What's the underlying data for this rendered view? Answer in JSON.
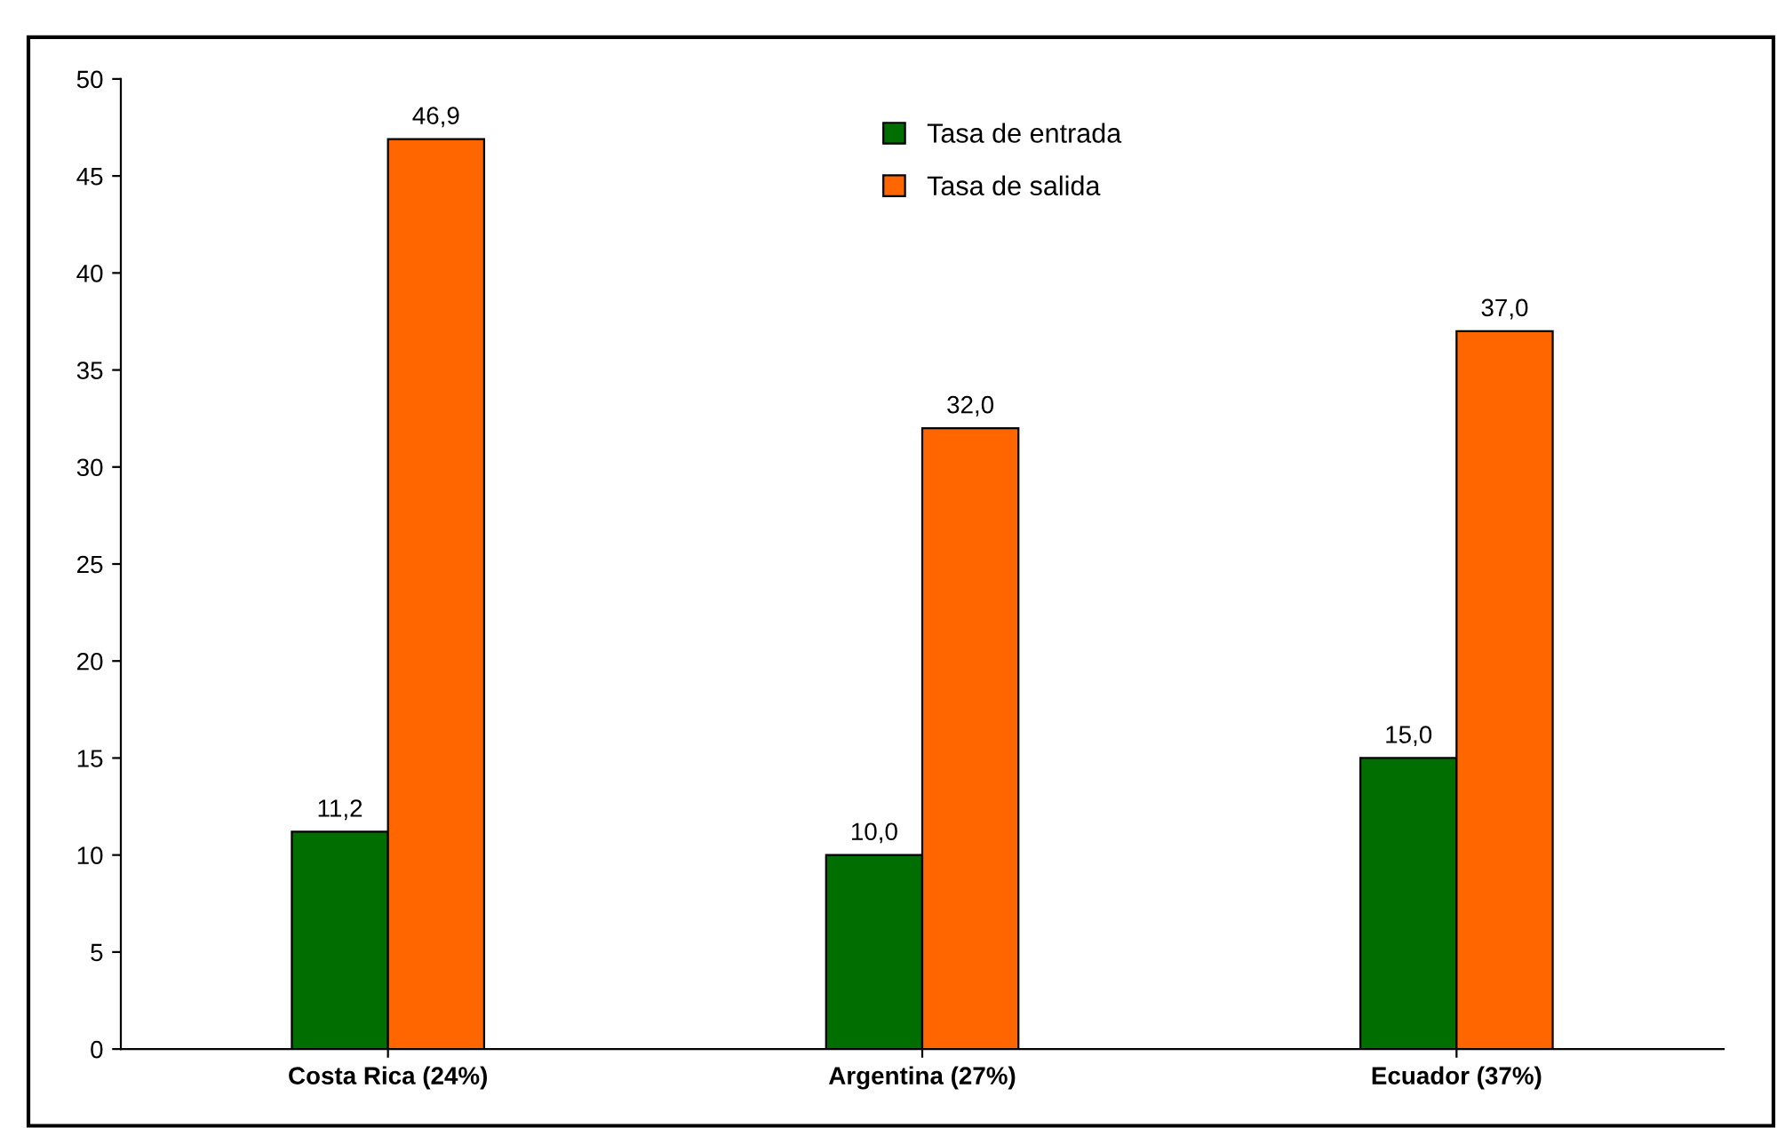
{
  "chart_data": {
    "type": "bar",
    "categories": [
      "Costa Rica (24%)",
      "Argentina (27%)",
      "Ecuador (37%)"
    ],
    "series": [
      {
        "name": "Tasa de entrada",
        "color": "#006e00",
        "values": [
          11.2,
          10.0,
          15.0
        ],
        "value_labels": [
          "11,2",
          "10,0",
          "15,0"
        ]
      },
      {
        "name": "Tasa de salida",
        "color": "#ff6600",
        "values": [
          46.9,
          32.0,
          37.0
        ],
        "value_labels": [
          "46,9",
          "32,0",
          "37,0"
        ]
      }
    ],
    "ylim": [
      0,
      50
    ],
    "yticks": [
      0,
      5,
      10,
      15,
      20,
      25,
      30,
      35,
      40,
      45,
      50
    ],
    "grid": false,
    "legend": "top"
  }
}
